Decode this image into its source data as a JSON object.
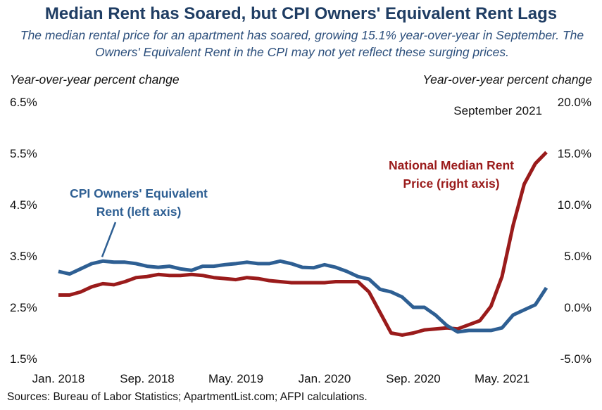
{
  "title": "Median Rent has Soared, but CPI Owners' Equivalent Rent Lags",
  "subtitle": "The median rental price for an apartment has soared, growing 15.1% year-over-year in September. The Owners' Equivalent Rent in the CPI may not yet reflect these surging prices.",
  "source": "Sources: Bureau of Labor Statistics; ApartmentList.com; AFPI calculations.",
  "colors": {
    "oer": "#2e5f93",
    "rent": "#9a1b1b"
  },
  "chart_data": {
    "type": "line",
    "left_axis_label": "Year-over-year percent change",
    "right_axis_label": "Year-over-year percent change",
    "left_ylim": [
      1.5,
      6.5
    ],
    "right_ylim": [
      -5.0,
      20.0
    ],
    "left_ticks": [
      "6.5%",
      "5.5%",
      "4.5%",
      "3.5%",
      "2.5%",
      "1.5%"
    ],
    "right_ticks": [
      "20.0%",
      "15.0%",
      "10.0%",
      "5.0%",
      "0.0%",
      "-5.0%"
    ],
    "x_ticks": [
      "Jan. 2018",
      "Sep. 2018",
      "May. 2019",
      "Jan. 2020",
      "Sep. 2020",
      "May. 2021"
    ],
    "x": [
      "Jan. 2018",
      "Feb. 2018",
      "Mar. 2018",
      "Apr. 2018",
      "May. 2018",
      "Jun. 2018",
      "Jul. 2018",
      "Aug. 2018",
      "Sep. 2018",
      "Oct. 2018",
      "Nov. 2018",
      "Dec. 2018",
      "Jan. 2019",
      "Feb. 2019",
      "Mar. 2019",
      "Apr. 2019",
      "May. 2019",
      "Jun. 2019",
      "Jul. 2019",
      "Aug. 2019",
      "Sep. 2019",
      "Oct. 2019",
      "Nov. 2019",
      "Dec. 2019",
      "Jan. 2020",
      "Feb. 2020",
      "Mar. 2020",
      "Apr. 2020",
      "May. 2020",
      "Jun. 2020",
      "Jul. 2020",
      "Aug. 2020",
      "Sep. 2020",
      "Oct. 2020",
      "Nov. 2020",
      "Dec. 2020",
      "Jan. 2021",
      "Feb. 2021",
      "Mar. 2021",
      "Apr. 2021",
      "May. 2021",
      "Jun. 2021",
      "Jul. 2021",
      "Aug. 2021",
      "Sep. 2021"
    ],
    "series": [
      {
        "name": "CPI Owners' Equivalent Rent (left axis)",
        "axis": "left",
        "values": [
          3.2,
          3.15,
          3.25,
          3.35,
          3.4,
          3.38,
          3.38,
          3.35,
          3.3,
          3.28,
          3.3,
          3.25,
          3.22,
          3.3,
          3.3,
          3.33,
          3.35,
          3.38,
          3.35,
          3.35,
          3.4,
          3.35,
          3.28,
          3.27,
          3.33,
          3.28,
          3.2,
          3.1,
          3.05,
          2.85,
          2.8,
          2.7,
          2.5,
          2.5,
          2.35,
          2.15,
          2.02,
          2.05,
          2.05,
          2.05,
          2.1,
          2.35,
          2.45,
          2.55,
          2.88
        ]
      },
      {
        "name": "National Median Rent Price (right axis)",
        "axis": "right",
        "values": [
          1.2,
          1.2,
          1.5,
          2.0,
          2.3,
          2.2,
          2.5,
          2.9,
          3.0,
          3.2,
          3.1,
          3.1,
          3.2,
          3.1,
          2.9,
          2.8,
          2.7,
          2.9,
          2.8,
          2.6,
          2.5,
          2.4,
          2.4,
          2.4,
          2.4,
          2.5,
          2.5,
          2.5,
          1.5,
          -0.5,
          -2.5,
          -2.7,
          -2.5,
          -2.2,
          -2.1,
          -2.0,
          -2.1,
          -1.7,
          -1.3,
          0.1,
          3.0,
          8.0,
          12.0,
          14.0,
          15.1
        ]
      }
    ],
    "annotations": {
      "oer_label_line1": "CPI Owners' Equivalent",
      "oer_label_line2": "Rent (left axis)",
      "rent_label_line1": "National Median Rent",
      "rent_label_line2": "Price (right axis)",
      "date_note": "September 2021"
    }
  }
}
